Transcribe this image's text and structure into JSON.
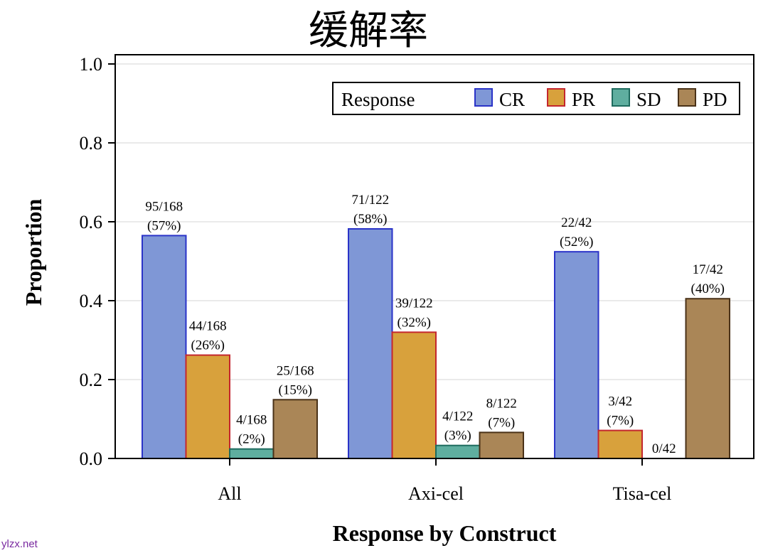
{
  "chart_data": {
    "type": "bar",
    "title": "缓解率",
    "xlabel": "Response by Construct",
    "ylabel": "Proportion",
    "ylim": [
      0,
      1.0
    ],
    "yticks": [
      "0.0",
      "0.2",
      "0.4",
      "0.6",
      "0.8",
      "1.0"
    ],
    "grid": true,
    "categories": [
      "All",
      "Axi-cel",
      "Tisa-cel"
    ],
    "legend": {
      "title": "Response",
      "position": "top-right",
      "entries": [
        "CR",
        "PR",
        "SD",
        "PD"
      ]
    },
    "series": [
      {
        "name": "CR",
        "color": "#7f97d6",
        "stroke": "#2a33c8",
        "values": [
          0.565,
          0.582,
          0.524
        ],
        "labels": [
          [
            "95/168",
            "(57%)"
          ],
          [
            "71/122",
            "(58%)"
          ],
          [
            "22/42",
            "(52%)"
          ]
        ]
      },
      {
        "name": "PR",
        "color": "#d8a13c",
        "stroke": "#c4262e",
        "values": [
          0.262,
          0.32,
          0.071
        ],
        "labels": [
          [
            "44/168",
            "(26%)"
          ],
          [
            "39/122",
            "(32%)"
          ],
          [
            "3/42",
            "(7%)"
          ]
        ]
      },
      {
        "name": "SD",
        "color": "#5fae9f",
        "stroke": "#1e6b5e",
        "values": [
          0.024,
          0.033,
          0.0
        ],
        "labels": [
          [
            "4/168",
            "(2%)"
          ],
          [
            "4/122",
            "(3%)"
          ],
          [
            "0/42"
          ]
        ]
      },
      {
        "name": "PD",
        "color": "#aa8657",
        "stroke": "#4a3218",
        "values": [
          0.149,
          0.066,
          0.405
        ],
        "labels": [
          [
            "25/168",
            "(15%)"
          ],
          [
            "8/122",
            "(7%)"
          ],
          [
            "17/42",
            "(40%)"
          ]
        ]
      }
    ]
  },
  "watermark": "ylzx.net"
}
